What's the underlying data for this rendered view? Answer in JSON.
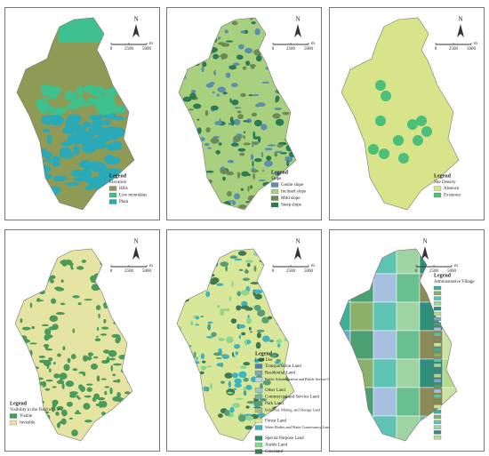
{
  "panels": [
    {
      "north": "N",
      "scale": {
        "ticks": [
          0,
          2500,
          5000
        ],
        "unit": "m"
      },
      "legend": {
        "title": "Legend",
        "subtitle": "Elevation",
        "items": [
          {
            "label": "Hills",
            "color": "#8f9a55"
          },
          {
            "label": "Low mountains",
            "color": "#3fc08f"
          },
          {
            "label": "Plain",
            "color": "#2aa9b9"
          }
        ]
      }
    },
    {
      "north": "N",
      "scale": {
        "ticks": [
          0,
          2500,
          5000
        ],
        "unit": "m"
      },
      "legend": {
        "title": "Legend",
        "subtitle": "Slope",
        "items": [
          {
            "label": "Gentle slope",
            "color": "#5b8fb0"
          },
          {
            "label": "Inclined slope",
            "color": "#a9d07e"
          },
          {
            "label": "Mild slope",
            "color": "#6c8a52"
          },
          {
            "label": "Steep slope",
            "color": "#2b7b52"
          }
        ]
      }
    },
    {
      "north": "N",
      "scale": {
        "ticks": [
          0,
          2500,
          5000
        ],
        "unit": "m"
      },
      "legend": {
        "title": "Legend",
        "subtitle": "Site Density",
        "items": [
          {
            "label": "Absence",
            "color": "#d8e48a"
          },
          {
            "label": "Existence",
            "color": "#4cbf7b"
          }
        ]
      }
    },
    {
      "north": "N",
      "scale": {
        "ticks": [
          0,
          2500,
          5000
        ],
        "unit": "m"
      },
      "legend": {
        "title": "Legend",
        "subtitle": "Visibility in the Field of View",
        "items": [
          {
            "label": "Visible",
            "color": "#4a9a5a"
          },
          {
            "label": "Invisible",
            "color": "#e6e4a2"
          }
        ]
      }
    },
    {
      "north": "N",
      "scale": {
        "ticks": [
          0,
          2500,
          5000
        ],
        "unit": "m"
      },
      "legend": {
        "title": "Legend",
        "subtitle": "Land Use",
        "items": [
          {
            "label": "Transportation Land",
            "color": "#4f7fa8"
          },
          {
            "label": "Residential Land",
            "color": "#7fa3c4"
          },
          {
            "label": "Public Administration and Public Service Land",
            "color": "#b9d5e5"
          },
          {
            "label": "Other Land",
            "color": "#9cc8c0"
          },
          {
            "label": "Commercial and Service Land",
            "color": "#7cb59a"
          },
          {
            "label": "Park Land",
            "color": "#5a9e78"
          },
          {
            "label": "Industrial, Mining, and Storage Land",
            "color": "#a7b88a"
          },
          {
            "label": "Forest Land",
            "color": "#d8e79a"
          },
          {
            "label": "Water Bodies and Water Conservancy Land",
            "color": "#3fb4c0"
          },
          {
            "label": "Special Purpose Land",
            "color": "#2f8a70"
          },
          {
            "label": "Arable Land",
            "color": "#8fd48f"
          },
          {
            "label": "Grassland",
            "color": "#3d7a4f"
          }
        ]
      }
    },
    {
      "north": "N",
      "scale": {
        "ticks": [
          0,
          2500,
          5000
        ],
        "unit": "m"
      },
      "legend": {
        "title": "Legend",
        "subtitle": "Administrative Village",
        "items": []
      }
    }
  ]
}
